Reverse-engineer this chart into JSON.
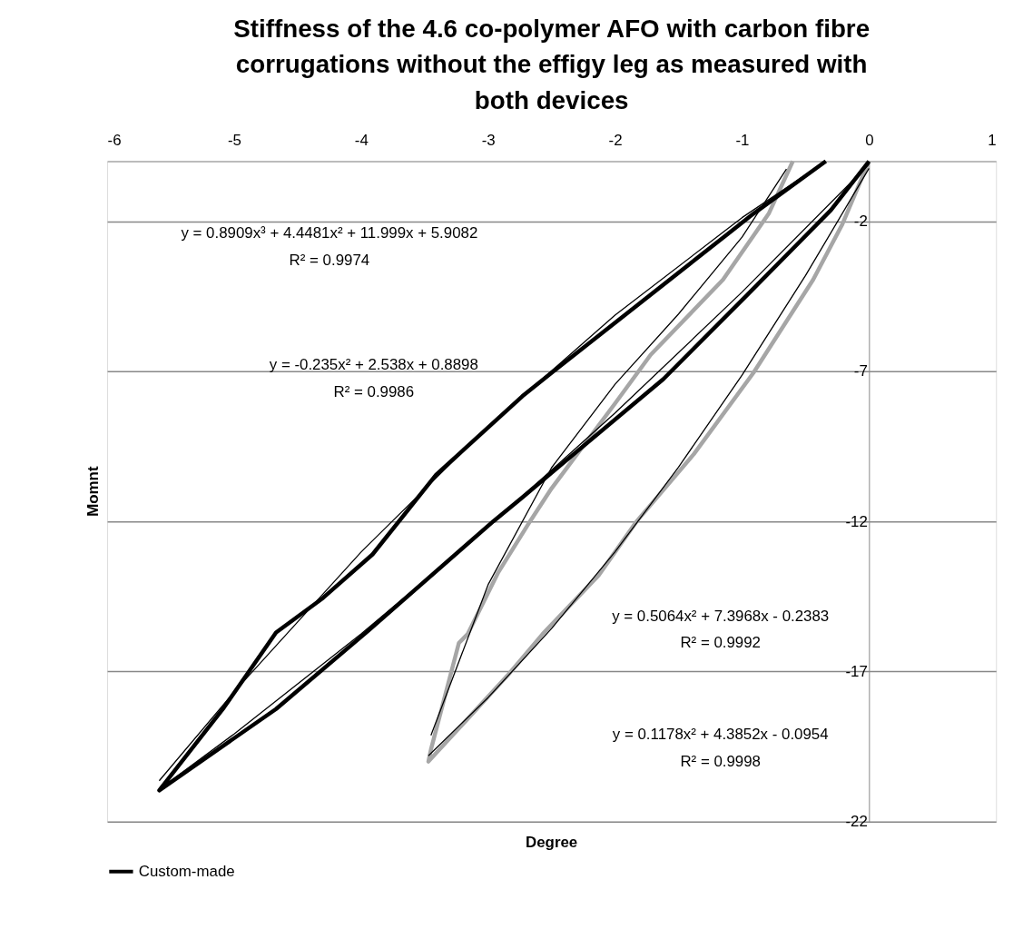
{
  "chart_data": {
    "type": "line",
    "title": "Stiffness of the 4.6 co-polymer AFO with carbon fibre corrugations without the effigy leg as measured with both devices",
    "xlabel": "Degree",
    "ylabel": "Momnt",
    "xlim": [
      -6,
      1
    ],
    "xticks": [
      -6,
      -5,
      -4,
      -3,
      -2,
      -1,
      0,
      1
    ],
    "ylim": [
      -22,
      0
    ],
    "yticks": [
      -22,
      -17,
      -12,
      -7,
      -2
    ],
    "grid": "y",
    "legend": "bottom",
    "series": [
      {
        "color": "#a6a6a6",
        "x": [
          0,
          -0.21,
          -0.44,
          -0.91,
          -1.38,
          -1.83,
          -2.13,
          -2.57,
          -2.84,
          -3.47,
          -3.45,
          -3.23,
          -3.16,
          -2.92,
          -2.67,
          -2.5,
          -2.0,
          -1.72,
          -1.15,
          -0.79,
          -0.6
        ],
        "values": [
          0,
          -2.1,
          -3.95,
          -7.05,
          -9.76,
          -12.0,
          -13.8,
          -15.75,
          -17.1,
          -20.0,
          -19.6,
          -16.05,
          -15.75,
          -13.7,
          -12.0,
          -10.9,
          -8.07,
          -6.45,
          -3.95,
          -1.75,
          0
        ]
      },
      {
        "name": "Custom-made",
        "color": "#000000",
        "x": [
          0,
          -0.3,
          -0.96,
          -1.62,
          -2.47,
          -2.73,
          -2.96,
          -3.94,
          -4.67,
          -5.59,
          -5.08,
          -4.67,
          -4.3,
          -3.91,
          -3.41,
          -2.73,
          -2.5,
          -0.91,
          -0.34
        ],
        "values": [
          0,
          -1.63,
          -4.46,
          -7.26,
          -10.27,
          -11.2,
          -12.0,
          -15.63,
          -18.25,
          -20.96,
          -18.2,
          -15.7,
          -14.55,
          -13.1,
          -10.45,
          -7.83,
          -7.05,
          -1.75,
          0
        ]
      },
      {
        "type": "line",
        "color": "#000000",
        "x": [
          0,
          -0.5,
          -1,
          -1.5,
          -2,
          -2.5,
          -3,
          -3.47
        ],
        "values": [
          -0.24,
          -3.81,
          -7.13,
          -10.19,
          -13.01,
          -15.57,
          -17.87,
          -19.81
        ]
      },
      {
        "type": "line",
        "color": "#000000",
        "x": [
          -3.45,
          -3,
          -2.5,
          -2,
          -1.5,
          -1,
          -0.65
        ],
        "values": [
          -19.13,
          -14.11,
          -10.21,
          -7.43,
          -5.09,
          -2.53,
          -0.26
        ]
      },
      {
        "type": "line",
        "color": "#000000",
        "x": [
          -5.59,
          -5,
          -4,
          -3,
          -2,
          -1,
          -0.35
        ],
        "values": [
          -20.64,
          -17.68,
          -13.02,
          -8.84,
          -5.13,
          -1.88,
          -0.03
        ]
      },
      {
        "type": "line",
        "color": "#000000",
        "x": [
          -5.59,
          -5,
          -4,
          -3,
          -2,
          -1,
          0
        ],
        "values": [
          -20.93,
          -19.08,
          -15.75,
          -12.19,
          -8.39,
          -4.36,
          -0.1
        ]
      }
    ],
    "annotations": [
      "y = -0.235x² + 2.538x + 0.8898\nR² = 0.9986",
      "y = 0.5064x² + 7.3968x - 0.2383\nR² = 0.9992",
      "y = 0.8909x³ + 4.4481x² + 11.999x + 5.9082\nR² = 0.9974",
      "y = 0.1178x² + 4.3852x - 0.0954\nR² = 0.9998"
    ]
  }
}
